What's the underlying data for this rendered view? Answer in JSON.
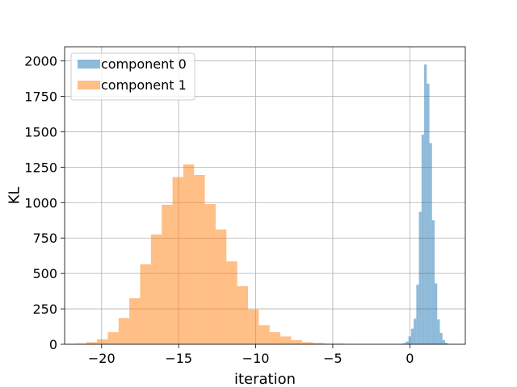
{
  "chart_data": {
    "type": "bar",
    "xlabel": "iteration",
    "ylabel": "KL",
    "xlim": [
      -22.4,
      3.6
    ],
    "ylim": [
      0,
      2100
    ],
    "xticks": [
      -20,
      -15,
      -10,
      -5,
      0
    ],
    "xtick_labels": [
      "−20",
      "−15",
      "−10",
      "−5",
      "0"
    ],
    "yticks": [
      0,
      250,
      500,
      750,
      1000,
      1250,
      1500,
      1750,
      2000
    ],
    "ytick_labels": [
      "0",
      "250",
      "500",
      "750",
      "1000",
      "1250",
      "1500",
      "1750",
      "2000"
    ],
    "grid": true,
    "legend_position": "top-left",
    "series": [
      {
        "name": "component 0",
        "color": "#1f77b4",
        "alpha": 0.5,
        "bins": [
          {
            "x0": -0.6,
            "x1": -0.43,
            "y": 2
          },
          {
            "x0": -0.43,
            "x1": -0.26,
            "y": 8
          },
          {
            "x0": -0.26,
            "x1": -0.09,
            "y": 20
          },
          {
            "x0": -0.09,
            "x1": 0.08,
            "y": 55
          },
          {
            "x0": 0.08,
            "x1": 0.25,
            "y": 110
          },
          {
            "x0": 0.25,
            "x1": 0.42,
            "y": 180
          },
          {
            "x0": 0.42,
            "x1": 0.59,
            "y": 420
          },
          {
            "x0": 0.59,
            "x1": 0.76,
            "y": 935
          },
          {
            "x0": 0.76,
            "x1": 0.93,
            "y": 1480
          },
          {
            "x0": 0.93,
            "x1": 1.1,
            "y": 1975
          },
          {
            "x0": 1.1,
            "x1": 1.27,
            "y": 1840
          },
          {
            "x0": 1.27,
            "x1": 1.44,
            "y": 1420
          },
          {
            "x0": 1.44,
            "x1": 1.61,
            "y": 875
          },
          {
            "x0": 1.61,
            "x1": 1.78,
            "y": 430
          },
          {
            "x0": 1.78,
            "x1": 1.95,
            "y": 175
          },
          {
            "x0": 1.95,
            "x1": 2.12,
            "y": 80
          },
          {
            "x0": 2.12,
            "x1": 2.29,
            "y": 30
          },
          {
            "x0": 2.29,
            "x1": 2.46,
            "y": 10
          },
          {
            "x0": 2.46,
            "x1": 2.63,
            "y": 3
          }
        ]
      },
      {
        "name": "component 1",
        "color": "#ff7f0e",
        "alpha": 0.5,
        "bins": [
          {
            "x0": -21.7,
            "x1": -21.0,
            "y": 5
          },
          {
            "x0": -21.0,
            "x1": -20.3,
            "y": 15
          },
          {
            "x0": -20.3,
            "x1": -19.6,
            "y": 35
          },
          {
            "x0": -19.6,
            "x1": -18.9,
            "y": 85
          },
          {
            "x0": -18.9,
            "x1": -18.2,
            "y": 185
          },
          {
            "x0": -18.2,
            "x1": -17.5,
            "y": 325
          },
          {
            "x0": -17.5,
            "x1": -16.8,
            "y": 565
          },
          {
            "x0": -16.8,
            "x1": -16.1,
            "y": 775
          },
          {
            "x0": -16.1,
            "x1": -15.4,
            "y": 985
          },
          {
            "x0": -15.4,
            "x1": -14.7,
            "y": 1180
          },
          {
            "x0": -14.7,
            "x1": -14.0,
            "y": 1270
          },
          {
            "x0": -14.0,
            "x1": -13.3,
            "y": 1195
          },
          {
            "x0": -13.3,
            "x1": -12.6,
            "y": 990
          },
          {
            "x0": -12.6,
            "x1": -11.9,
            "y": 810
          },
          {
            "x0": -11.9,
            "x1": -11.2,
            "y": 585
          },
          {
            "x0": -11.2,
            "x1": -10.5,
            "y": 410
          },
          {
            "x0": -10.5,
            "x1": -9.8,
            "y": 245
          },
          {
            "x0": -9.8,
            "x1": -9.1,
            "y": 135
          },
          {
            "x0": -9.1,
            "x1": -8.4,
            "y": 85
          },
          {
            "x0": -8.4,
            "x1": -7.7,
            "y": 55
          },
          {
            "x0": -7.7,
            "x1": -7.0,
            "y": 30
          },
          {
            "x0": -7.0,
            "x1": -6.3,
            "y": 15
          },
          {
            "x0": -6.3,
            "x1": -5.6,
            "y": 10
          },
          {
            "x0": -5.6,
            "x1": -4.9,
            "y": 5
          },
          {
            "x0": -4.9,
            "x1": -4.2,
            "y": 5
          }
        ]
      }
    ]
  }
}
